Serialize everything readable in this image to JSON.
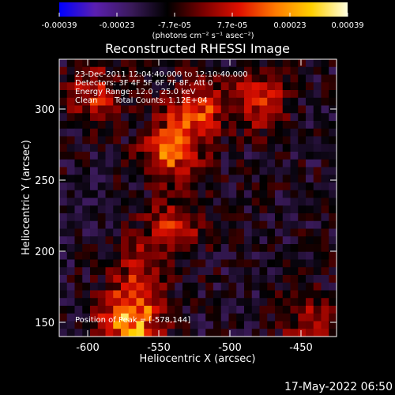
{
  "chart_data": {
    "type": "heatmap",
    "title": "Reconstructed RHESSI Image",
    "xlabel": "Heliocentric X (arcsec)",
    "ylabel": "Heliocentric Y (arcsec)",
    "xlim": [
      -620,
      -425
    ],
    "ylim": [
      140,
      335
    ],
    "x_ticks": [
      "-600",
      "-550",
      "-500",
      "-450"
    ],
    "x_tick_values": [
      -600,
      -550,
      -500,
      -450
    ],
    "y_ticks": [
      "150",
      "200",
      "250",
      "300"
    ],
    "y_tick_values": [
      150,
      200,
      250,
      300
    ],
    "colorbar": {
      "min": -0.00039,
      "max": 0.00039,
      "tick_labels": [
        "-0.00039",
        "-0.00023",
        "-7.7e-05",
        "7.7e-05",
        "0.00023",
        "0.00039"
      ],
      "unit_label": "(photons cm⁻² s⁻¹ asec⁻²)",
      "colors": [
        "#0000ff",
        "#5b1fb0",
        "#3a1a5a",
        "#000000",
        "#7a0000",
        "#e01000",
        "#ff7a00",
        "#ffd000",
        "#ffffe0"
      ]
    },
    "annotations": {
      "time_range": "23-Dec-2011 12:04:40.000 to 12:10:40.000",
      "detectors": "Detectors: 3F 4F 5F 6F 7F 8F, Att 0",
      "energy_range": "Energy Range: 12.0 - 25.0 keV",
      "method": "Clean",
      "total_counts": "Total Counts: 1.12E+04",
      "peak_position": "Position of Peak = [-578,144]"
    },
    "peak": [
      -578,
      144
    ],
    "bright_regions": [
      {
        "x": -570,
        "y": 150,
        "intensity": 0.00039
      },
      {
        "x": -540,
        "y": 270,
        "intensity": 0.00028
      },
      {
        "x": -525,
        "y": 300,
        "intensity": 0.00025
      },
      {
        "x": -480,
        "y": 305,
        "intensity": 0.00022
      },
      {
        "x": -540,
        "y": 215,
        "intensity": 0.0002
      },
      {
        "x": -595,
        "y": 310,
        "intensity": 0.00018
      },
      {
        "x": -565,
        "y": 185,
        "intensity": 0.00017
      },
      {
        "x": -445,
        "y": 150,
        "intensity": 0.00015
      }
    ]
  },
  "footer": {
    "date_stamp": "17-May-2022 06:50"
  }
}
